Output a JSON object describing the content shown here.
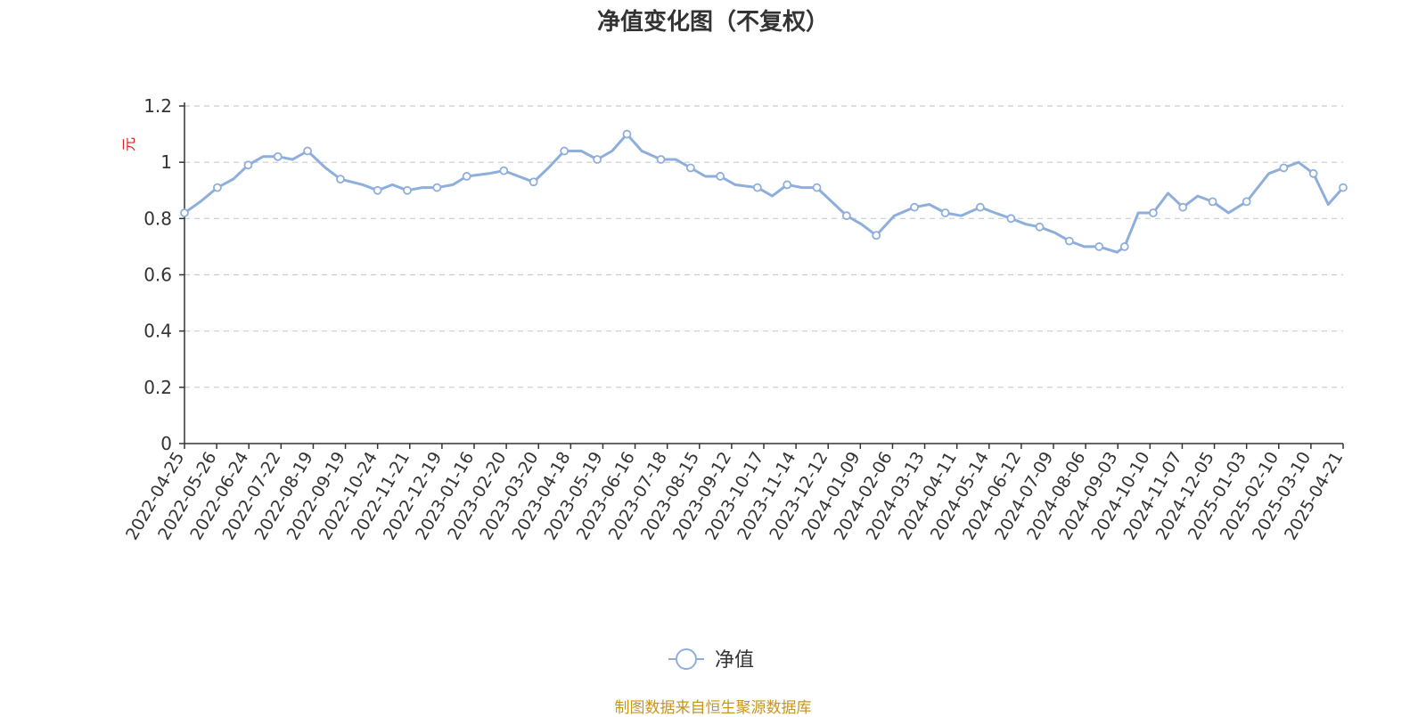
{
  "title": "净值变化图（不复权）",
  "source_note": "制图数据来自恒生聚源数据库",
  "colors": {
    "line": "#8eaedc",
    "axis": "#333333",
    "grid": "#cccccc",
    "ylabel": "#e02020",
    "source": "#c8951d"
  },
  "chart_data": {
    "type": "line",
    "title": "净值变化图（不复权）",
    "ylabel": "元",
    "xlabel": "",
    "ylim": [
      0,
      1.2
    ],
    "yticks": [
      0,
      0.2,
      0.4,
      0.6,
      0.8,
      1,
      1.2
    ],
    "grid": true,
    "legend_position": "bottom-center",
    "x_tick_labels": [
      "2022-04-25",
      "2022-05-26",
      "2022-06-24",
      "2022-07-22",
      "2022-08-19",
      "2022-09-19",
      "2022-10-24",
      "2022-11-21",
      "2022-12-19",
      "2023-01-16",
      "2023-02-20",
      "2023-03-20",
      "2023-04-18",
      "2023-05-19",
      "2023-06-16",
      "2023-07-18",
      "2023-08-15",
      "2023-09-12",
      "2023-10-17",
      "2023-11-14",
      "2023-12-12",
      "2024-01-09",
      "2024-02-06",
      "2024-03-13",
      "2024-04-11",
      "2024-05-14",
      "2024-06-12",
      "2024-07-09",
      "2024-08-06",
      "2024-09-03",
      "2024-10-10",
      "2024-11-07",
      "2024-12-05",
      "2025-01-03",
      "2025-02-10",
      "2025-03-10",
      "2025-04-21"
    ],
    "series": [
      {
        "name": "净值",
        "x": [
          "2022-04-25",
          "2022-05-10",
          "2022-05-26",
          "2022-06-10",
          "2022-06-24",
          "2022-07-08",
          "2022-07-22",
          "2022-08-05",
          "2022-08-19",
          "2022-09-05",
          "2022-09-19",
          "2022-10-10",
          "2022-10-24",
          "2022-11-07",
          "2022-11-21",
          "2022-12-05",
          "2022-12-19",
          "2023-01-03",
          "2023-01-16",
          "2023-02-06",
          "2023-02-20",
          "2023-03-06",
          "2023-03-20",
          "2023-04-03",
          "2023-04-18",
          "2023-05-04",
          "2023-05-19",
          "2023-06-02",
          "2023-06-16",
          "2023-06-30",
          "2023-07-18",
          "2023-08-01",
          "2023-08-15",
          "2023-08-29",
          "2023-09-12",
          "2023-09-26",
          "2023-10-17",
          "2023-10-31",
          "2023-11-14",
          "2023-11-28",
          "2023-12-12",
          "2023-12-26",
          "2024-01-09",
          "2024-01-23",
          "2024-02-06",
          "2024-02-23",
          "2024-03-13",
          "2024-03-27",
          "2024-04-11",
          "2024-04-26",
          "2024-05-14",
          "2024-05-28",
          "2024-06-12",
          "2024-06-26",
          "2024-07-09",
          "2024-07-23",
          "2024-08-06",
          "2024-08-20",
          "2024-09-03",
          "2024-09-20",
          "2024-09-27",
          "2024-10-10",
          "2024-10-24",
          "2024-11-07",
          "2024-11-21",
          "2024-12-05",
          "2024-12-19",
          "2025-01-03",
          "2025-01-20",
          "2025-02-10",
          "2025-02-24",
          "2025-03-10",
          "2025-03-24",
          "2025-04-07",
          "2025-04-21"
        ],
        "y": [
          0.82,
          0.86,
          0.91,
          0.94,
          0.99,
          1.02,
          1.02,
          1.01,
          1.04,
          0.98,
          0.94,
          0.92,
          0.9,
          0.92,
          0.9,
          0.91,
          0.91,
          0.92,
          0.95,
          0.96,
          0.97,
          0.95,
          0.93,
          0.98,
          1.04,
          1.04,
          1.01,
          1.04,
          1.1,
          1.04,
          1.01,
          1.01,
          0.98,
          0.95,
          0.95,
          0.92,
          0.91,
          0.88,
          0.92,
          0.91,
          0.91,
          0.86,
          0.81,
          0.78,
          0.74,
          0.81,
          0.84,
          0.85,
          0.82,
          0.81,
          0.84,
          0.82,
          0.8,
          0.78,
          0.77,
          0.75,
          0.72,
          0.7,
          0.7,
          0.68,
          0.7,
          0.82,
          0.82,
          0.89,
          0.84,
          0.88,
          0.86,
          0.82,
          0.86,
          0.96,
          0.98,
          1.0,
          0.96,
          0.85,
          0.91
        ]
      }
    ]
  }
}
